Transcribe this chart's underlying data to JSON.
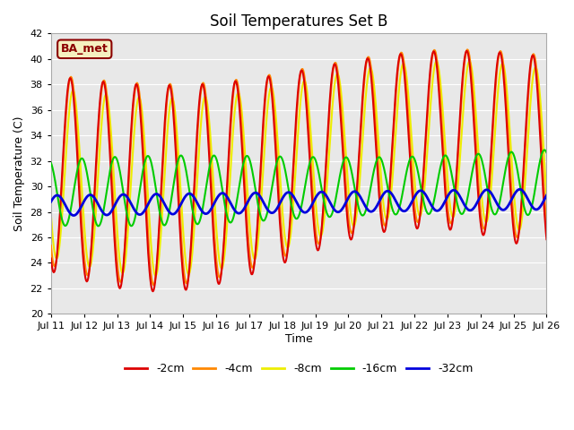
{
  "title": "Soil Temperatures Set B",
  "xlabel": "Time",
  "ylabel": "Soil Temperature (C)",
  "ylim": [
    20,
    42
  ],
  "yticks": [
    20,
    22,
    24,
    26,
    28,
    30,
    32,
    34,
    36,
    38,
    40,
    42
  ],
  "annotation": "BA_met",
  "legend_entries": [
    "-2cm",
    "-4cm",
    "-8cm",
    "-16cm",
    "-32cm"
  ],
  "line_colors": [
    "#dd0000",
    "#ff8800",
    "#eeee00",
    "#00cc00",
    "#0000dd"
  ],
  "line_widths": [
    1.5,
    1.5,
    1.5,
    1.5,
    2.0
  ],
  "points_per_day": 48,
  "n_days": 15,
  "xtick_labels": [
    "Jul 11",
    "Jul 12",
    "Jul 13",
    "Jul 14",
    "Jul 15",
    "Jul 16",
    "Jul 17",
    "Jul 18",
    "Jul 19",
    "Jul 20",
    "Jul 21",
    "Jul 22",
    "Jul 23",
    "Jul 24",
    "Jul 25",
    "Jul 26"
  ]
}
